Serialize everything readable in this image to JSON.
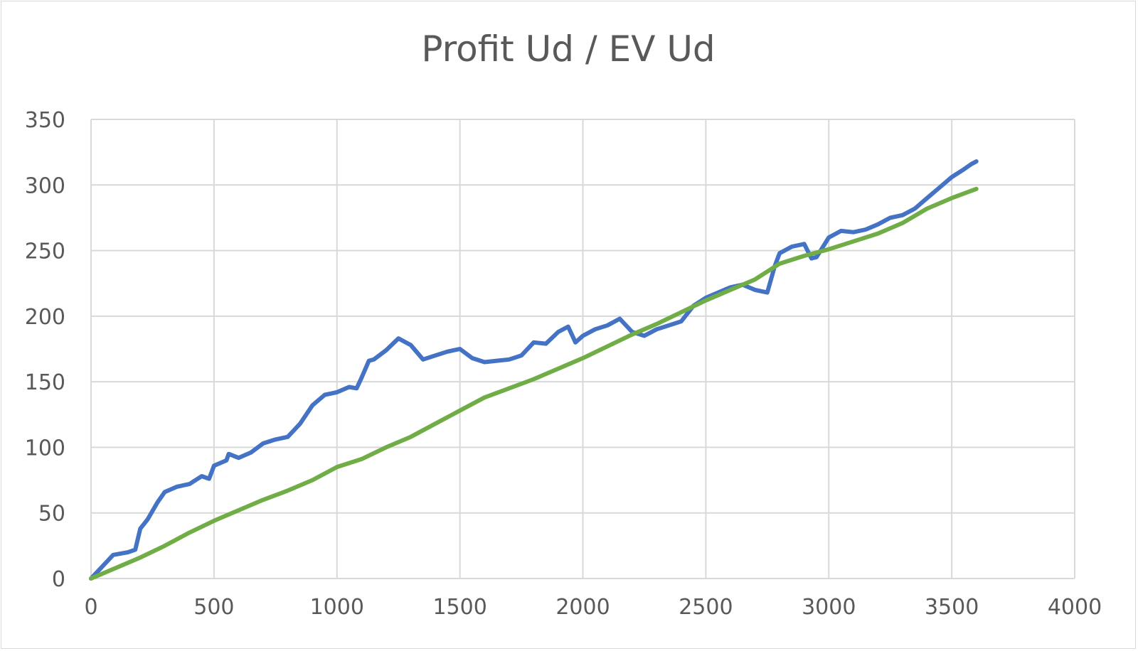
{
  "chart_data": {
    "type": "line",
    "title": "Profit Ud / EV Ud",
    "xlabel": "",
    "ylabel": "",
    "xlim": [
      0,
      4000
    ],
    "ylim": [
      0,
      350
    ],
    "x_ticks": [
      "0",
      "500",
      "1000",
      "1500",
      "2000",
      "2500",
      "3000",
      "3500",
      "4000"
    ],
    "y_ticks": [
      "0",
      "50",
      "100",
      "150",
      "200",
      "250",
      "300",
      "350"
    ],
    "grid": true,
    "legend": "none",
    "series": [
      {
        "color": "#4472c4",
        "points": [
          [
            0,
            0
          ],
          [
            30,
            6
          ],
          [
            60,
            12
          ],
          [
            90,
            18
          ],
          [
            150,
            20
          ],
          [
            180,
            22
          ],
          [
            200,
            38
          ],
          [
            230,
            45
          ],
          [
            270,
            58
          ],
          [
            300,
            66
          ],
          [
            350,
            70
          ],
          [
            400,
            72
          ],
          [
            450,
            78
          ],
          [
            480,
            76
          ],
          [
            500,
            86
          ],
          [
            550,
            90
          ],
          [
            560,
            95
          ],
          [
            600,
            92
          ],
          [
            650,
            96
          ],
          [
            700,
            103
          ],
          [
            750,
            106
          ],
          [
            800,
            108
          ],
          [
            850,
            118
          ],
          [
            900,
            132
          ],
          [
            950,
            140
          ],
          [
            1000,
            142
          ],
          [
            1050,
            146
          ],
          [
            1080,
            145
          ],
          [
            1100,
            153
          ],
          [
            1130,
            166
          ],
          [
            1150,
            167
          ],
          [
            1200,
            174
          ],
          [
            1250,
            183
          ],
          [
            1300,
            178
          ],
          [
            1350,
            167
          ],
          [
            1400,
            170
          ],
          [
            1450,
            173
          ],
          [
            1500,
            175
          ],
          [
            1550,
            168
          ],
          [
            1600,
            165
          ],
          [
            1650,
            166
          ],
          [
            1700,
            167
          ],
          [
            1750,
            170
          ],
          [
            1800,
            180
          ],
          [
            1850,
            179
          ],
          [
            1900,
            188
          ],
          [
            1940,
            192
          ],
          [
            1970,
            180
          ],
          [
            2000,
            185
          ],
          [
            2050,
            190
          ],
          [
            2100,
            193
          ],
          [
            2150,
            198
          ],
          [
            2200,
            188
          ],
          [
            2250,
            185
          ],
          [
            2300,
            190
          ],
          [
            2350,
            193
          ],
          [
            2400,
            196
          ],
          [
            2450,
            208
          ],
          [
            2500,
            214
          ],
          [
            2550,
            218
          ],
          [
            2600,
            222
          ],
          [
            2650,
            224
          ],
          [
            2700,
            220
          ],
          [
            2750,
            218
          ],
          [
            2780,
            238
          ],
          [
            2800,
            248
          ],
          [
            2850,
            253
          ],
          [
            2900,
            255
          ],
          [
            2930,
            244
          ],
          [
            2950,
            245
          ],
          [
            3000,
            260
          ],
          [
            3050,
            265
          ],
          [
            3100,
            264
          ],
          [
            3150,
            266
          ],
          [
            3200,
            270
          ],
          [
            3250,
            275
          ],
          [
            3300,
            277
          ],
          [
            3350,
            282
          ],
          [
            3400,
            290
          ],
          [
            3450,
            298
          ],
          [
            3500,
            306
          ],
          [
            3550,
            312
          ],
          [
            3580,
            316
          ],
          [
            3600,
            318
          ]
        ]
      },
      {
        "color": "#70ad47",
        "points": [
          [
            0,
            0
          ],
          [
            100,
            8
          ],
          [
            200,
            16
          ],
          [
            300,
            25
          ],
          [
            400,
            35
          ],
          [
            500,
            44
          ],
          [
            600,
            52
          ],
          [
            700,
            60
          ],
          [
            800,
            67
          ],
          [
            900,
            75
          ],
          [
            1000,
            85
          ],
          [
            1100,
            91
          ],
          [
            1200,
            100
          ],
          [
            1300,
            108
          ],
          [
            1400,
            118
          ],
          [
            1500,
            128
          ],
          [
            1600,
            138
          ],
          [
            1700,
            145
          ],
          [
            1800,
            152
          ],
          [
            1900,
            160
          ],
          [
            2000,
            168
          ],
          [
            2100,
            177
          ],
          [
            2200,
            186
          ],
          [
            2300,
            194
          ],
          [
            2400,
            203
          ],
          [
            2500,
            212
          ],
          [
            2600,
            220
          ],
          [
            2700,
            228
          ],
          [
            2800,
            240
          ],
          [
            2900,
            246
          ],
          [
            3000,
            251
          ],
          [
            3100,
            257
          ],
          [
            3200,
            263
          ],
          [
            3300,
            271
          ],
          [
            3400,
            282
          ],
          [
            3500,
            290
          ],
          [
            3600,
            297
          ]
        ]
      }
    ]
  }
}
